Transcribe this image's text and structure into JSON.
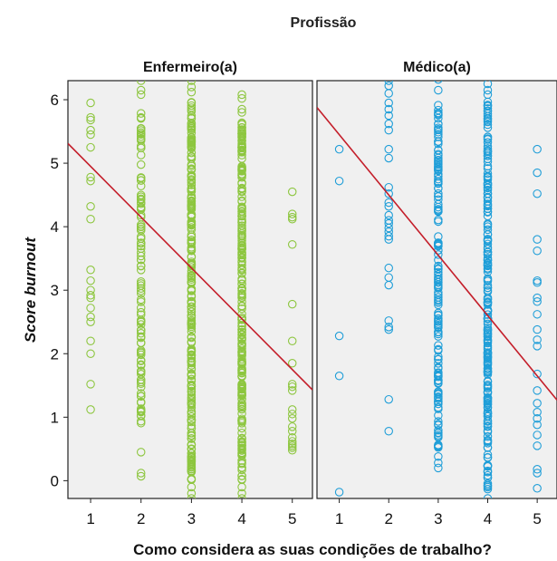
{
  "chart_data": {
    "type": "scatter",
    "title": "Profissão",
    "xlabel": "Como considera as suas condições de trabalho?",
    "ylabel": "Score burnout",
    "xlim": [
      0.55,
      5.4
    ],
    "ylim": [
      -0.28,
      6.3
    ],
    "xticks": [
      "1",
      "2",
      "3",
      "4",
      "5"
    ],
    "yticks": [
      "0",
      "1",
      "2",
      "3",
      "4",
      "5",
      "6"
    ],
    "background": "#f0f0f0",
    "line_color": "#c41e2a",
    "panels": [
      {
        "label": "Enfermeiro(a)",
        "color": "#8dc63f",
        "fit": {
          "intercept": 5.75,
          "slope": -0.8
        },
        "points": [
          {
            "x": 1,
            "y": [
              5.95,
              5.72,
              5.68,
              5.52,
              5.45,
              5.25,
              4.78,
              4.72,
              4.32,
              4.12,
              3.32,
              3.15,
              3.0,
              2.92,
              2.88,
              2.72,
              2.58,
              2.5,
              2.2,
              2.0,
              1.52,
              1.12
            ]
          },
          {
            "x": 2,
            "y": [
              6.3,
              6.15,
              6.08,
              0.45,
              0.12,
              0.07
            ],
            "range": [
              0.85,
              5.8
            ],
            "n": 110
          },
          {
            "x": 3,
            "y": [
              6.3,
              6.2,
              6.12,
              -0.1,
              -0.2,
              -0.28
            ],
            "range": [
              0.0,
              6.0
            ],
            "n": 260
          },
          {
            "x": 4,
            "y": [
              6.08,
              6.02,
              5.85,
              5.8,
              -0.1,
              -0.2,
              -0.28
            ],
            "range": [
              0.0,
              5.7
            ],
            "n": 240
          },
          {
            "x": 5,
            "y": [
              4.55,
              4.2,
              4.15,
              4.12,
              3.72,
              2.78,
              2.2,
              1.85,
              1.52,
              1.48,
              1.42,
              1.12,
              1.05,
              0.98,
              0.85,
              0.78,
              0.68,
              0.62,
              0.58,
              0.55,
              0.52,
              0.48
            ]
          }
        ]
      },
      {
        "label": "Médico(a)",
        "color": "#1f9ed8",
        "fit": {
          "intercept": 6.4,
          "slope": -0.95
        },
        "points": [
          {
            "x": 1,
            "y": [
              5.22,
              4.72,
              2.28,
              1.65,
              -0.18
            ]
          },
          {
            "x": 2,
            "y": [
              6.3,
              6.22,
              6.1,
              5.95,
              5.85,
              5.75,
              5.62,
              5.52,
              5.22,
              5.08,
              4.62,
              4.52,
              4.38,
              4.32,
              4.18,
              4.1,
              4.05,
              3.98,
              3.92,
              3.85,
              3.8,
              3.35,
              3.2,
              3.08,
              2.52,
              2.42,
              2.38,
              1.28,
              0.78
            ]
          },
          {
            "x": 3,
            "y": [
              6.32,
              6.15,
              0.38,
              0.28,
              0.2
            ],
            "range": [
              0.5,
              6.0
            ],
            "n": 160
          },
          {
            "x": 4,
            "y": [
              6.25,
              6.15,
              6.08,
              -0.28
            ],
            "range": [
              -0.15,
              6.0
            ],
            "n": 220
          },
          {
            "x": 5,
            "y": [
              5.22,
              4.85,
              4.52,
              3.8,
              3.62,
              3.15,
              3.12,
              2.88,
              2.82,
              2.62,
              2.38,
              2.22,
              2.12,
              1.68,
              1.42,
              1.22,
              1.08,
              0.98,
              0.88,
              0.72,
              0.55,
              0.18,
              0.12,
              -0.12
            ]
          }
        ]
      }
    ]
  }
}
